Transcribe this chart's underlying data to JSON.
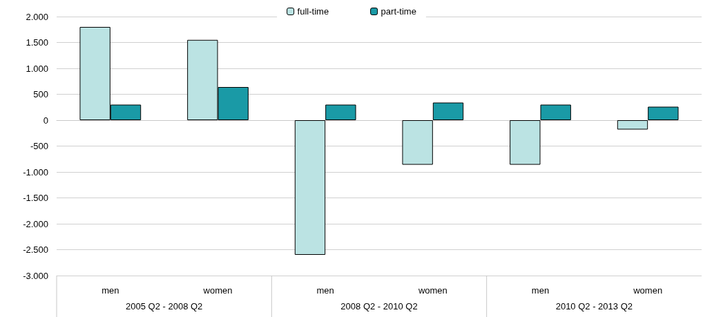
{
  "chart_data": {
    "type": "bar",
    "categories": [
      "men",
      "women",
      "men",
      "women",
      "men",
      "women"
    ],
    "series": [
      {
        "name": "full-time",
        "color": "#bbe3e3",
        "values": [
          1800,
          1550,
          -2600,
          -860,
          -860,
          -180
        ]
      },
      {
        "name": "part-time",
        "color": "#1a9aa6",
        "values": [
          300,
          640,
          300,
          340,
          300,
          260
        ]
      }
    ],
    "ylim": [
      -3000,
      2000
    ],
    "yticks": [
      {
        "value": -3000,
        "label": "-3.000"
      },
      {
        "value": -2500,
        "label": "-2.500"
      },
      {
        "value": -2000,
        "label": "-2.000"
      },
      {
        "value": -1500,
        "label": "-1.500"
      },
      {
        "value": -1000,
        "label": "-1.000"
      },
      {
        "value": -500,
        "label": "-500"
      },
      0,
      500,
      {
        "value": 1000,
        "label": "1.000"
      },
      {
        "value": 1500,
        "label": "1.500"
      },
      {
        "value": 2000,
        "label": "2.000"
      }
    ],
    "annotations": [
      "2005 Q2 - 2008 Q2",
      "2008 Q2 - 2010 Q2",
      "2010 Q2 - 2013 Q2"
    ],
    "grid": "y",
    "legend": "top"
  }
}
